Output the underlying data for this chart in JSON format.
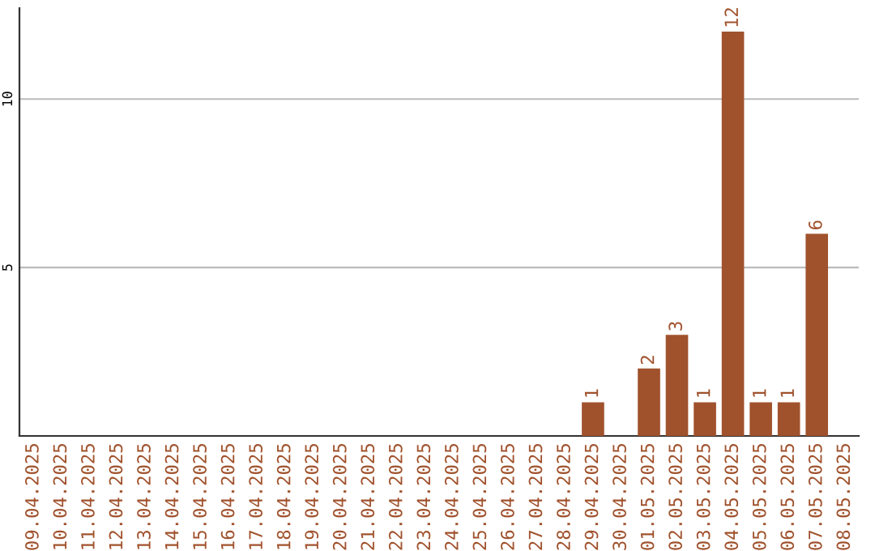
{
  "chart_data": {
    "type": "bar",
    "categories": [
      "09.04.2025",
      "10.04.2025",
      "11.04.2025",
      "12.04.2025",
      "13.04.2025",
      "14.04.2025",
      "15.04.2025",
      "16.04.2025",
      "17.04.2025",
      "18.04.2025",
      "19.04.2025",
      "20.04.2025",
      "21.04.2025",
      "22.04.2025",
      "23.04.2025",
      "24.04.2025",
      "25.04.2025",
      "26.04.2025",
      "27.04.2025",
      "28.04.2025",
      "29.04.2025",
      "30.04.2025",
      "01.05.2025",
      "02.05.2025",
      "03.05.2025",
      "04.05.2025",
      "05.05.2025",
      "06.05.2025",
      "07.05.2025",
      "08.05.2025"
    ],
    "values": [
      0,
      0,
      0,
      0,
      0,
      0,
      0,
      0,
      0,
      0,
      0,
      0,
      0,
      0,
      0,
      0,
      0,
      0,
      0,
      0,
      1,
      0,
      2,
      3,
      1,
      12,
      1,
      1,
      6,
      0
    ],
    "value_labels": [
      null,
      null,
      null,
      null,
      null,
      null,
      null,
      null,
      null,
      null,
      null,
      null,
      null,
      null,
      null,
      null,
      null,
      null,
      null,
      null,
      "1",
      null,
      "2",
      "3",
      "1",
      "12",
      "1",
      "1",
      "6",
      null
    ],
    "color": "#a0522d",
    "ylim": [
      0,
      12.7
    ],
    "yticks": [
      5,
      10
    ],
    "grid": "y"
  }
}
